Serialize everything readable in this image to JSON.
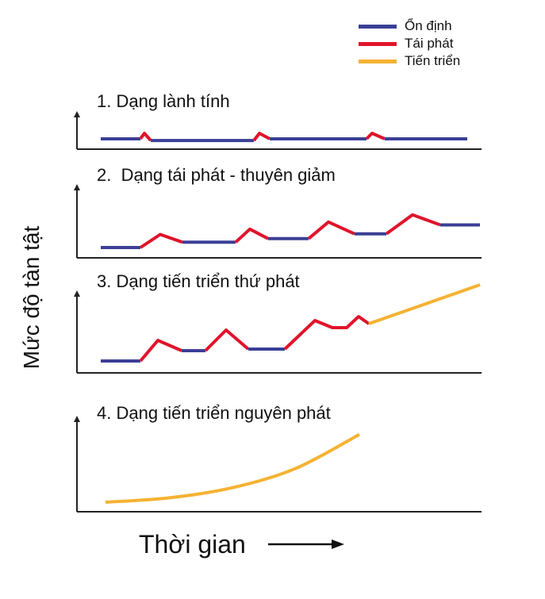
{
  "legend": {
    "stable": "Ổn định",
    "relapse": "Tái phát",
    "progressive": "Tiến triển"
  },
  "colors": {
    "stable": "#3b3f96",
    "relapse": "#e0142b",
    "progressive": "#f5b233",
    "axis": "#222222"
  },
  "ylabel": "Mức độ tàn tật",
  "xlabel": "Thời gian",
  "chart_data": [
    {
      "type": "line",
      "title": "1. Dạng lành tính",
      "segments": [
        {
          "kind": "stable",
          "points": [
            [
              0,
              0
            ],
            [
              50,
              0
            ]
          ]
        },
        {
          "kind": "relapse",
          "points": [
            [
              50,
              0
            ],
            [
              55,
              1
            ],
            [
              63,
              -0.3
            ]
          ]
        },
        {
          "kind": "stable",
          "points": [
            [
              63,
              -0.3
            ],
            [
              193,
              -0.3
            ]
          ]
        },
        {
          "kind": "relapse",
          "points": [
            [
              193,
              -0.3
            ],
            [
              200,
              1
            ],
            [
              213,
              0
            ]
          ]
        },
        {
          "kind": "stable",
          "points": [
            [
              213,
              0
            ],
            [
              335,
              0
            ]
          ]
        },
        {
          "kind": "relapse",
          "points": [
            [
              335,
              0
            ],
            [
              342,
              1
            ],
            [
              358,
              0
            ]
          ]
        },
        {
          "kind": "stable",
          "points": [
            [
              358,
              0
            ],
            [
              462,
              0
            ]
          ]
        }
      ]
    },
    {
      "type": "line",
      "title": "2.  Dạng tái phát - thuyên giảm",
      "segments": [
        {
          "kind": "stable",
          "points": [
            [
              0,
              0
            ],
            [
              50,
              0
            ]
          ]
        },
        {
          "kind": "relapse",
          "points": [
            [
              50,
              0
            ],
            [
              75,
              2.2
            ],
            [
              103,
              0.9
            ]
          ]
        },
        {
          "kind": "stable",
          "points": [
            [
              103,
              0.9
            ],
            [
              170,
              0.9
            ]
          ]
        },
        {
          "kind": "relapse",
          "points": [
            [
              170,
              0.9
            ],
            [
              188,
              3.1
            ],
            [
              211,
              1.5
            ]
          ]
        },
        {
          "kind": "stable",
          "points": [
            [
              211,
              1.5
            ],
            [
              262,
              1.5
            ]
          ]
        },
        {
          "kind": "relapse",
          "points": [
            [
              262,
              1.5
            ],
            [
              287,
              4.3
            ],
            [
              320,
              2.3
            ]
          ]
        },
        {
          "kind": "stable",
          "points": [
            [
              320,
              2.3
            ],
            [
              360,
              2.3
            ]
          ]
        },
        {
          "kind": "relapse",
          "points": [
            [
              360,
              2.3
            ],
            [
              393,
              5.5
            ],
            [
              428,
              3.8
            ]
          ]
        },
        {
          "kind": "stable",
          "points": [
            [
              428,
              3.8
            ],
            [
              478,
              3.8
            ]
          ]
        }
      ]
    },
    {
      "type": "line",
      "title": "3. Dạng tiến triển thứ phát",
      "segments": [
        {
          "kind": "stable",
          "points": [
            [
              0,
              0
            ],
            [
              50,
              0
            ]
          ]
        },
        {
          "kind": "relapse",
          "points": [
            [
              50,
              0
            ],
            [
              72,
              2.6
            ],
            [
              102,
              1.3
            ]
          ]
        },
        {
          "kind": "stable",
          "points": [
            [
              102,
              1.3
            ],
            [
              132,
              1.3
            ]
          ]
        },
        {
          "kind": "relapse",
          "points": [
            [
              132,
              1.3
            ],
            [
              158,
              3.9
            ],
            [
              186,
              1.5
            ]
          ]
        },
        {
          "kind": "stable",
          "points": [
            [
              186,
              1.5
            ],
            [
              232,
              1.5
            ]
          ]
        },
        {
          "kind": "relapse",
          "points": [
            [
              232,
              1.5
            ],
            [
              270,
              5.1
            ],
            [
              292,
              4.2
            ],
            [
              310,
              4.2
            ],
            [
              325,
              5.6
            ],
            [
              338,
              4.7
            ]
          ]
        },
        {
          "kind": "progressive",
          "points": [
            [
              338,
              4.7
            ],
            [
              478,
              9.6
            ]
          ]
        }
      ]
    },
    {
      "type": "line",
      "title": "4. Dạng tiến triển nguyên phát",
      "segments": [
        {
          "kind": "progressive",
          "curve": true,
          "points": [
            [
              0,
              0
            ],
            [
              80,
              0.9
            ],
            [
              160,
              3.0
            ],
            [
              240,
              7.0
            ],
            [
              320,
              14.0
            ]
          ]
        }
      ]
    }
  ]
}
